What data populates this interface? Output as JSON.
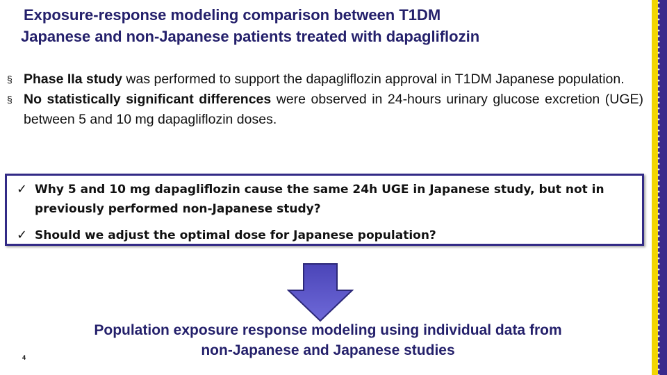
{
  "slide": {
    "title_line1": "Exposure-response modeling comparison between T1DM",
    "title_line2": "Japanese and non-Japanese patients treated with dapagliflozin",
    "bullets": [
      {
        "bold": "Phase IIa study",
        "rest": " was performed to support the dapagliflozin approval in T1DM Japanese population."
      },
      {
        "bold": "No statistically significant differences",
        "rest": " were observed in 24-hours urinary glucose excretion (UGE) between 5 and 10 mg dapagliflozin doses."
      }
    ],
    "bullet_symbol": "§",
    "questions": [
      "Why 5 and 10 mg dapagliflozin cause the same 24h UGE in Japanese study, but not in previously performed non-Japanese study?",
      "Should we adjust the optimal dose for Japanese population?"
    ],
    "check_symbol": "✓",
    "conclusion_line1": "Population exposure response modeling using individual data from",
    "conclusion_line2": "non-Japanese and Japanese studies",
    "page_number": "4",
    "icons": {
      "arrow": "down-arrow-icon",
      "check": "check-icon",
      "bullet": "square-bullet-icon"
    },
    "colors": {
      "title": "#24206b",
      "box_border": "#322a86",
      "arrow_fill": "#5a55c8",
      "accent_yellow": "#f2d600",
      "accent_purple": "#3a2a8c"
    }
  }
}
